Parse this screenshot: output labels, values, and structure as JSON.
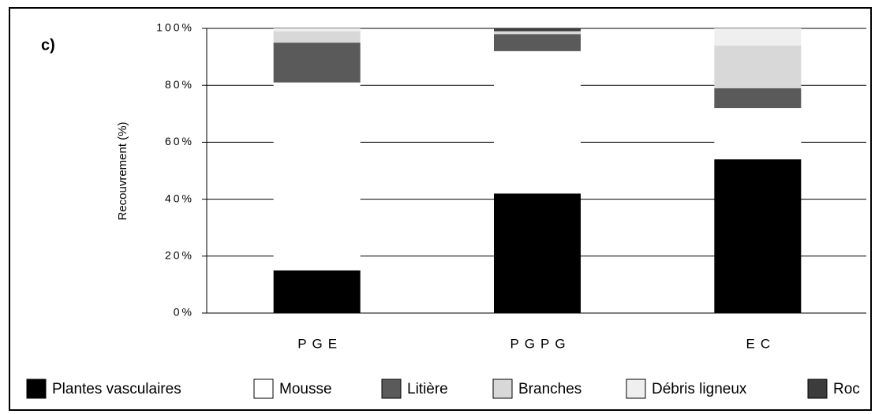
{
  "chart_data": {
    "type": "stacked_bar",
    "panel_label": "c)",
    "ylabel": "Recouvrement (%)",
    "categories": [
      "PGE",
      "PGPG",
      "EC"
    ],
    "series": [
      {
        "name": "Plantes vasculaires",
        "color": "#000000",
        "values": [
          15,
          42,
          54
        ]
      },
      {
        "name": "Mousse",
        "color": "#ffffff",
        "values": [
          66,
          50,
          18
        ]
      },
      {
        "name": "Litière",
        "color": "#5a5a5a",
        "values": [
          14,
          6,
          7
        ]
      },
      {
        "name": "Branches",
        "color": "#d8d8d8",
        "values": [
          4,
          1,
          15
        ]
      },
      {
        "name": "Débris ligneux",
        "color": "#efefef",
        "values": [
          1,
          0,
          6
        ]
      },
      {
        "name": "Roc",
        "color": "#3c3c3c",
        "values": [
          0,
          1,
          0
        ]
      }
    ],
    "ylim": [
      0,
      100
    ],
    "yticks": [
      {
        "value": 0,
        "label": "0%"
      },
      {
        "value": 20,
        "label": "20%"
      },
      {
        "value": 40,
        "label": "40%"
      },
      {
        "value": 60,
        "label": "60%"
      },
      {
        "value": 80,
        "label": "80%"
      },
      {
        "value": 100,
        "label": "100%"
      }
    ],
    "grid": true,
    "legend": "bottom"
  }
}
